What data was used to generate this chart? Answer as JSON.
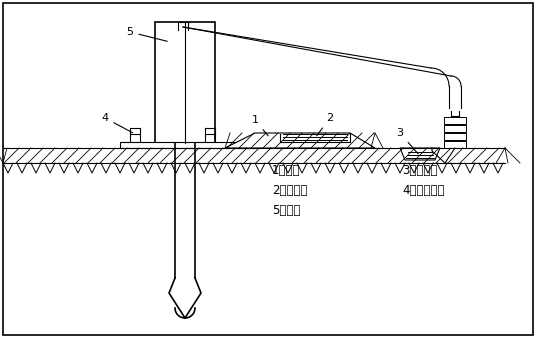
{
  "bg_color": "#ffffff",
  "line_color": "#000000",
  "legend_items": [
    "1、土台",
    "3、沉淠池",
    "2、储浆池",
    "4、工作平台",
    "5、钒机"
  ]
}
